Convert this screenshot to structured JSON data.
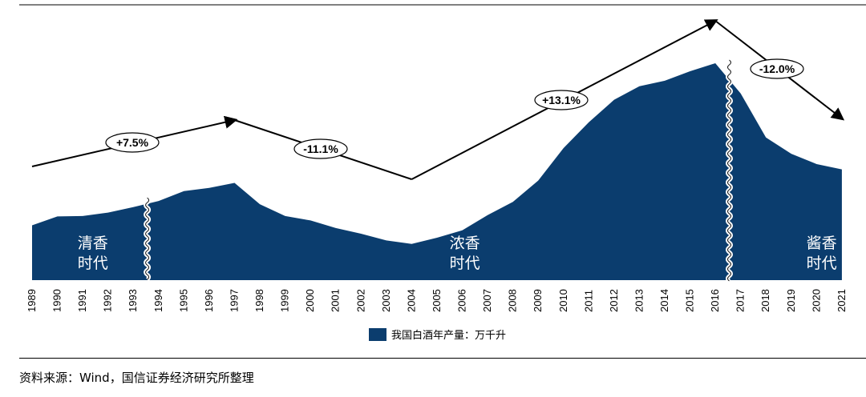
{
  "chart_data": {
    "type": "area",
    "x": [
      "1989",
      "1990",
      "1991",
      "1992",
      "1993",
      "1994",
      "1995",
      "1996",
      "1997",
      "1998",
      "1999",
      "2000",
      "2001",
      "2002",
      "2003",
      "2004",
      "2005",
      "2006",
      "2007",
      "2008",
      "2009",
      "2010",
      "2011",
      "2012",
      "2013",
      "2014",
      "2015",
      "2016",
      "2017",
      "2018",
      "2019",
      "2020",
      "2021"
    ],
    "series": [
      {
        "name": "我国白酒年产量：万千升",
        "values": [
          260,
          302,
          304,
          320,
          346,
          375,
          422,
          437,
          461,
          360,
          304,
          283,
          247,
          220,
          188,
          172,
          201,
          236,
          308,
          371,
          472,
          626,
          748,
          855,
          919,
          945,
          990,
          1028,
          885,
          676,
          599,
          550,
          525
        ]
      }
    ],
    "ylim": [
      0,
      1100
    ],
    "breaks_after": [
      "1993",
      "2016"
    ],
    "eras": [
      {
        "line1": "清香",
        "line2": "时代"
      },
      {
        "line1": "浓香",
        "line2": "时代"
      },
      {
        "line1": "酱香",
        "line2": "时代"
      }
    ],
    "trends": [
      {
        "label": "+7.5%"
      },
      {
        "label": "-11.1%"
      },
      {
        "label": "+13.1%"
      },
      {
        "label": "-12.0%"
      }
    ],
    "legend_position": "bottom-center",
    "grid": false,
    "colors": {
      "area": "#0b3d6e",
      "arrow": "#000000"
    }
  },
  "legend": {
    "label": "我国白酒年产量：万千升"
  },
  "source": "资料来源：Wind，国信证券经济研究所整理"
}
